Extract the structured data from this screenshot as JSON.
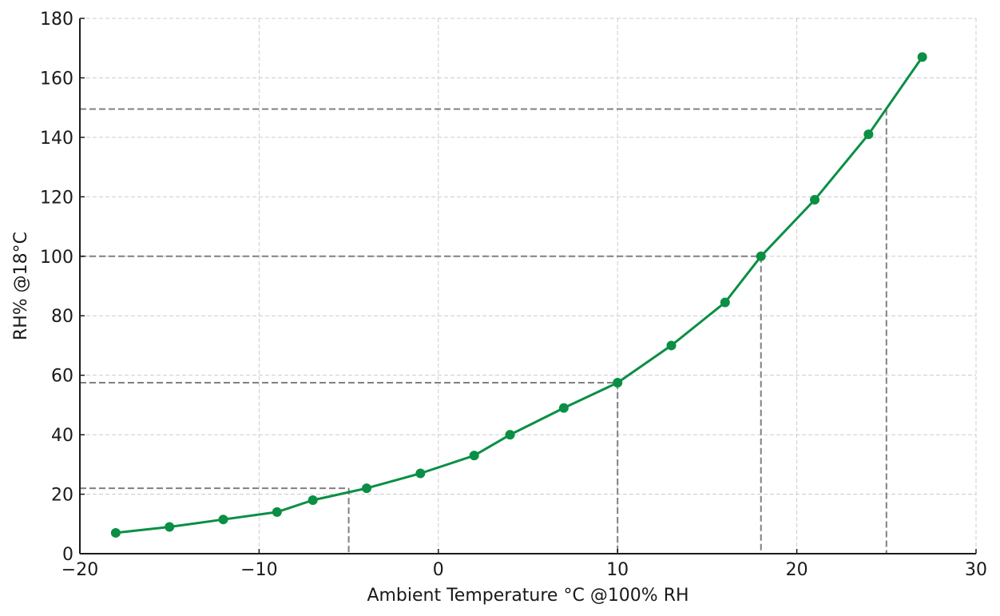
{
  "chart_data": {
    "type": "line",
    "title": "",
    "xlabel": "Ambient Temperature °C @100% RH",
    "ylabel": "RH% @18°C",
    "xlim": [
      -20,
      30
    ],
    "ylim": [
      0,
      180
    ],
    "xticks": [
      -20,
      -10,
      0,
      10,
      20,
      30
    ],
    "xtick_labels": [
      "−20",
      "−10",
      "0",
      "10",
      "20",
      "30"
    ],
    "yticks": [
      0,
      20,
      40,
      60,
      80,
      100,
      120,
      140,
      160,
      180
    ],
    "ytick_labels": [
      "0",
      "20",
      "40",
      "60",
      "80",
      "100",
      "120",
      "140",
      "160",
      "180"
    ],
    "grid": true,
    "legend": null,
    "series": [
      {
        "name": "RH% @18°C",
        "color": "#0a8f45",
        "marker": "circle",
        "x": [
          -18,
          -15,
          -12,
          -9,
          -7,
          -4,
          -1,
          2,
          4,
          7,
          10,
          13,
          16,
          18,
          21,
          24,
          27
        ],
        "y": [
          7,
          9,
          11.5,
          14,
          18,
          22,
          27,
          33,
          40,
          49,
          57.5,
          70,
          84.5,
          100,
          119,
          141,
          167
        ]
      }
    ],
    "reference_lines": [
      {
        "x": -5,
        "y": 22
      },
      {
        "x": 10,
        "y": 57.5
      },
      {
        "x": 18,
        "y": 100
      },
      {
        "x": 25,
        "y": 149.5
      }
    ]
  },
  "colors": {
    "line": "#0a8f45",
    "grid": "#cccccc",
    "reference": "#808080",
    "axis": "#1a1a1a"
  }
}
